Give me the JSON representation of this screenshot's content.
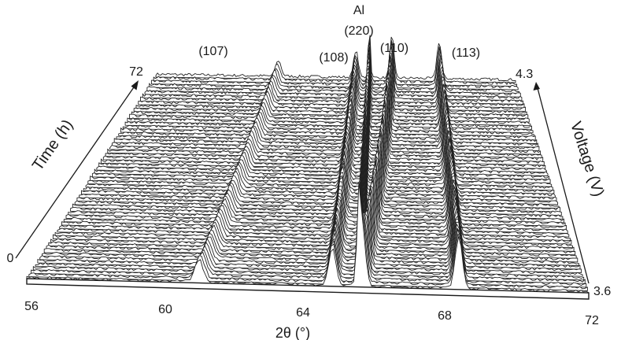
{
  "chart_data": {
    "type": "line",
    "subtype": "waterfall-3d",
    "xlabel": "2θ (°)",
    "x_ticks": [
      56,
      60,
      64,
      68,
      72
    ],
    "xlim": [
      56,
      72
    ],
    "time_label": "Time (h)",
    "time_range": [
      0,
      72
    ],
    "time_ticks": [
      "0",
      "72"
    ],
    "voltage_label": "Voltage (V)",
    "voltage_range": [
      3.6,
      4.3
    ],
    "voltage_ticks": [
      "3.6",
      "4.3"
    ],
    "n_traces": 60,
    "annotations": [
      {
        "text": "(107)",
        "x": 61.4
      },
      {
        "text": "(108)",
        "x": 64.9
      },
      {
        "text": "Al",
        "x": 65.5
      },
      {
        "text": "(220)",
        "x": 65.5
      },
      {
        "text": "(110)",
        "x": 66.5
      },
      {
        "text": "(113)",
        "x": 68.6
      }
    ],
    "peaks": [
      {
        "reflection": "(107)",
        "x_start": 60.9,
        "x_end": 61.45,
        "height": 0.32,
        "width": 0.12
      },
      {
        "reflection": "(108)",
        "x_start": 64.7,
        "x_end": 64.9,
        "height": 0.55,
        "width": 0.1
      },
      {
        "reflection": "Al (220)",
        "x_start": 65.45,
        "x_end": 65.5,
        "height": 1.0,
        "width": 0.05
      },
      {
        "reflection": "(110)",
        "x_start": 65.55,
        "x_end": 66.5,
        "height": 0.85,
        "width": 0.09
      },
      {
        "reflection": "(113)",
        "x_start": 68.3,
        "x_end": 68.6,
        "height": 0.75,
        "width": 0.1
      }
    ],
    "grid": false,
    "legend": "none"
  }
}
